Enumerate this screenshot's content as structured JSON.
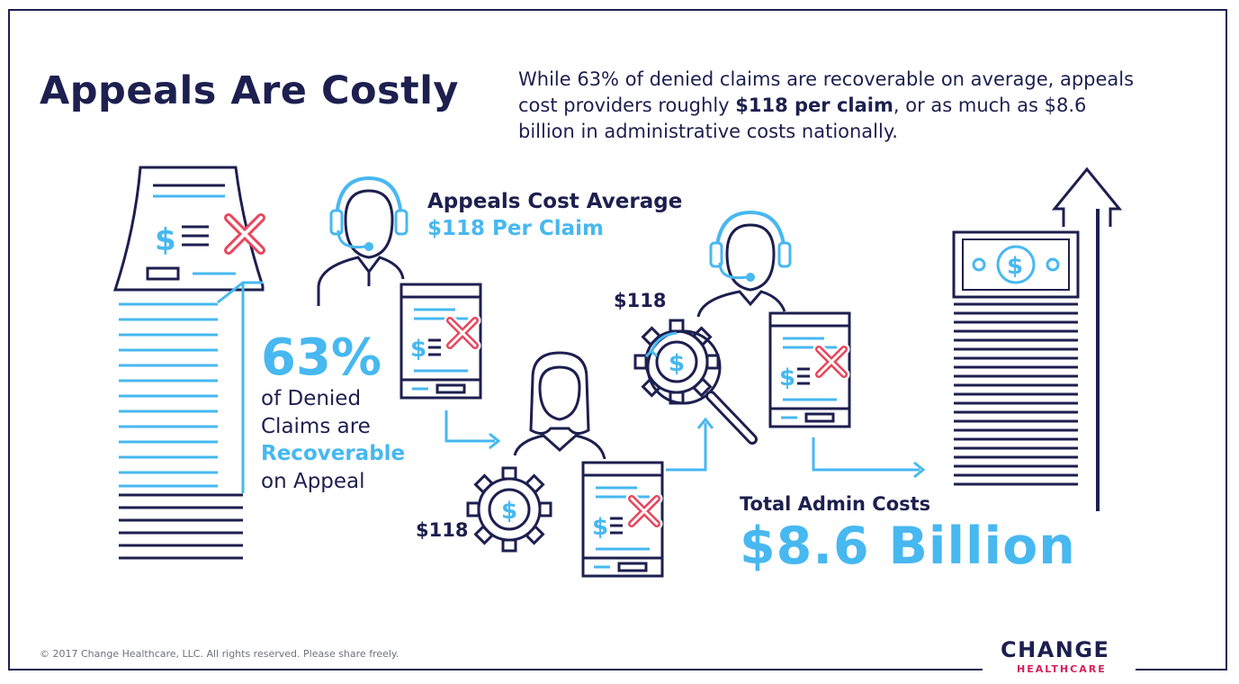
{
  "title": "Appeals Are Costly",
  "intro": {
    "part1": "While 63% of denied claims are recoverable on average, appeals cost providers roughly ",
    "bold": "$118 per claim",
    "part2": ", or as much as $8.6 billion in administrative costs nationally."
  },
  "stat": {
    "percent": "63%",
    "line1": "of  Denied",
    "line2": "Claims are",
    "line3": "Recoverable",
    "line4": "on Appeal"
  },
  "appeals": {
    "heading": "Appeals Cost Average",
    "subheading": "$118 Per Claim"
  },
  "cost_labels": {
    "upper": "$118",
    "lower": "$118"
  },
  "total": {
    "heading": "Total Admin Costs",
    "value": "$8.6 Billion"
  },
  "footer": "© 2017 Change Healthcare, LLC. All rights reserved. Please share freely.",
  "logo": {
    "line1": "CHANGE",
    "line2": "HEALTHCARE"
  },
  "icons": {
    "claims-stack": "document-stack-icon",
    "agent": "headset-agent-icon",
    "person": "woman-icon",
    "gear": "gear-dollar-icon",
    "magnifier-gear": "gear-search-icon",
    "denied-claim": "denied-claim-icon",
    "money-stack": "money-stack-icon",
    "up-arrow": "up-arrow-icon"
  },
  "colors": {
    "navy": "#1d1f4f",
    "blue": "#47b8f0",
    "red": "#e8475e"
  }
}
